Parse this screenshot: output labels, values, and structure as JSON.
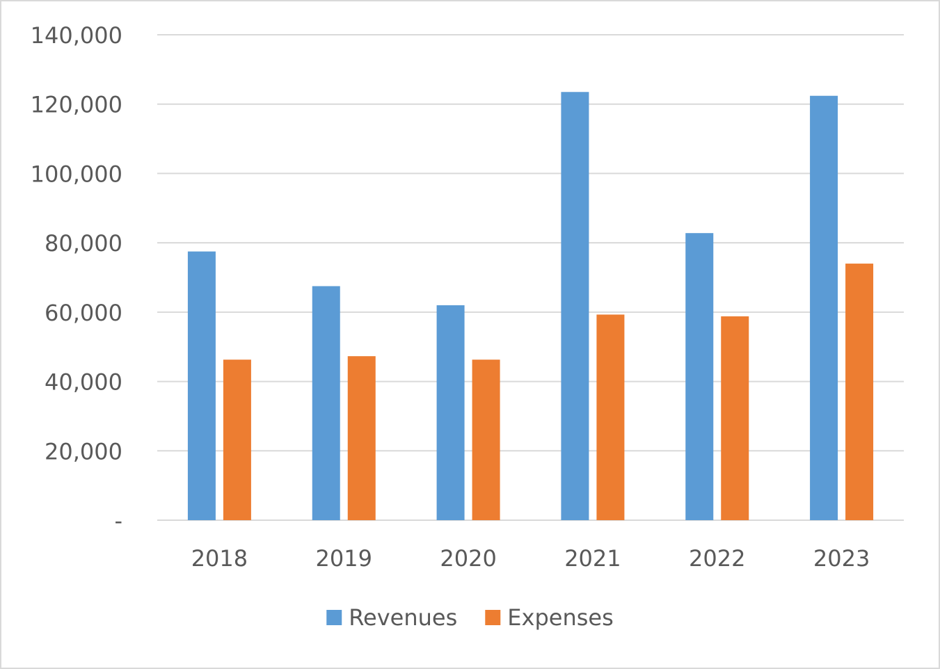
{
  "chart_data": {
    "type": "bar",
    "categories": [
      "2018",
      "2019",
      "2020",
      "2021",
      "2022",
      "2023"
    ],
    "series": [
      {
        "name": "Revenues",
        "color": "#5b9bd5",
        "values": [
          77500,
          67500,
          62000,
          123500,
          82800,
          122400
        ]
      },
      {
        "name": "Expenses",
        "color": "#ed7d31",
        "values": [
          46300,
          47300,
          46300,
          59300,
          58800,
          74000
        ]
      }
    ],
    "ylim": [
      0,
      140000
    ],
    "y_ticks": [
      0,
      20000,
      40000,
      60000,
      80000,
      100000,
      120000,
      140000
    ],
    "y_tick_labels": [
      "-",
      "20,000",
      "40,000",
      "60,000",
      "80,000",
      "100,000",
      "120,000",
      "140,000"
    ],
    "grid": true,
    "legend_position": "bottom",
    "title": "",
    "xlabel": "",
    "ylabel": ""
  }
}
